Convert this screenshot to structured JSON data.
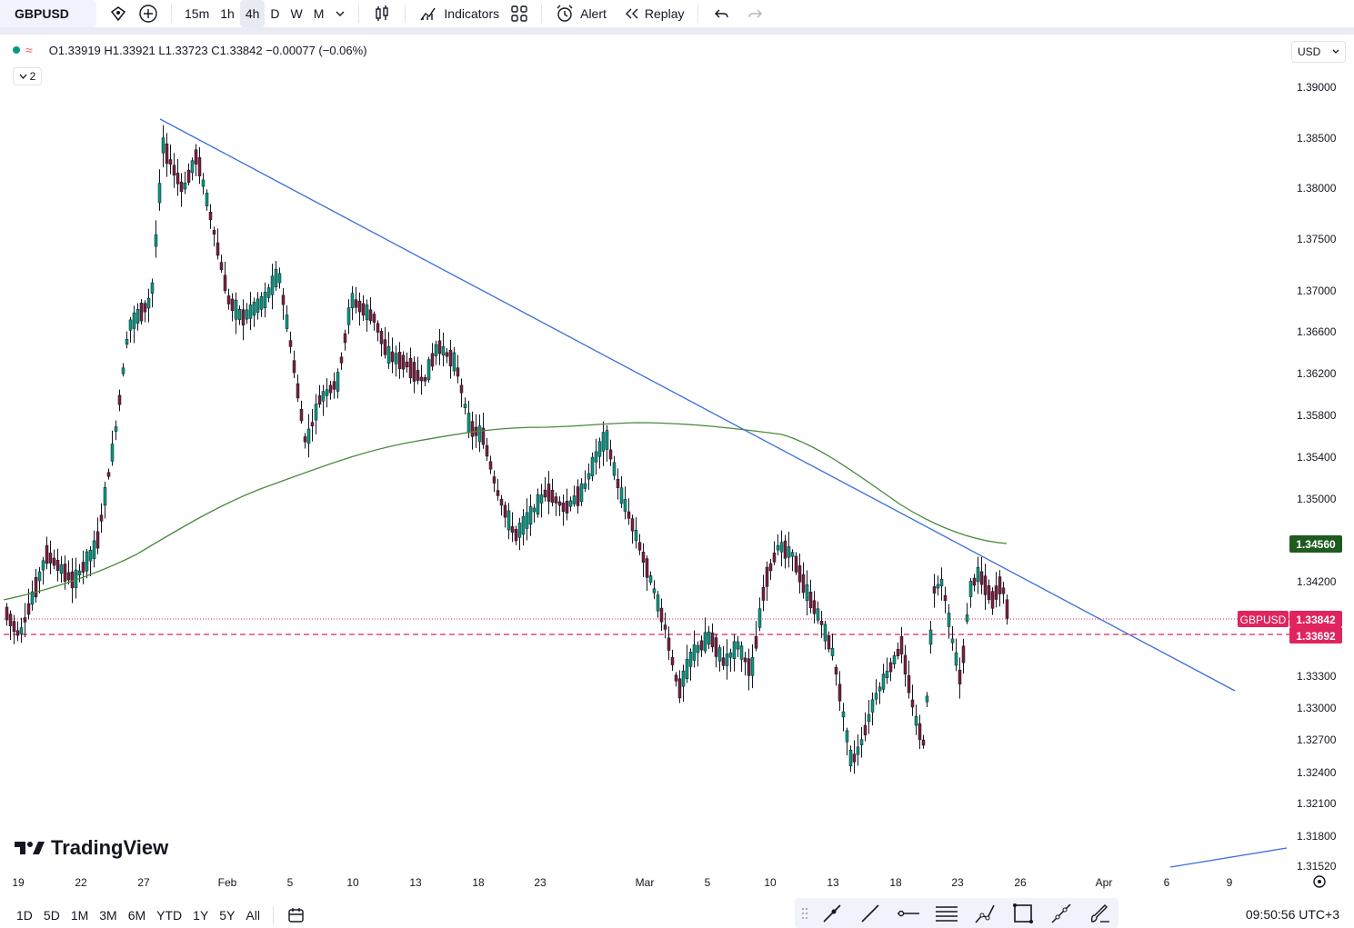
{
  "toolbar": {
    "symbol": "GBPUSD",
    "intervals": [
      "15m",
      "1h",
      "4h",
      "D",
      "W",
      "M"
    ],
    "active_interval": "4h",
    "indicators_label": "Indicators",
    "alert_label": "Alert",
    "replay_label": "Replay"
  },
  "legend": {
    "ohlc": "O1.33919  H1.33921  L1.33723  C1.33842  −0.00077 (−0.06%)",
    "collapse_count": "2"
  },
  "currency": "USD",
  "price_axis": {
    "ticks": [
      "1.39000",
      "1.38500",
      "1.38000",
      "1.37500",
      "1.37000",
      "1.36600",
      "1.36200",
      "1.35800",
      "1.35400",
      "1.35000",
      "1.34200",
      "1.33300",
      "1.33000",
      "1.32700",
      "1.32400",
      "1.32100",
      "1.31800",
      "1.31520"
    ],
    "ma_label": "1.34560",
    "symbol_label": "GBPUSD",
    "last_price": "1.33842",
    "dashed_price": "1.33692"
  },
  "time_axis": {
    "labels": [
      "19",
      "22",
      "27",
      "Feb",
      "5",
      "10",
      "13",
      "18",
      "23",
      "Mar",
      "5",
      "10",
      "13",
      "18",
      "23",
      "26",
      "Apr",
      "6",
      "9"
    ]
  },
  "colors": {
    "up": "#089981",
    "down": "#7a1f3d",
    "trendline": "#3a6fdc",
    "ma": "#4a8a3c",
    "last_price": "#e0245e",
    "ma_label_bg": "#1e5b20"
  },
  "logo": "TradingView",
  "bottombar": {
    "ranges": [
      "1D",
      "5D",
      "1M",
      "3M",
      "6M",
      "YTD",
      "1Y",
      "5Y",
      "All"
    ],
    "clock": "09:50:56 UTC+3"
  }
}
